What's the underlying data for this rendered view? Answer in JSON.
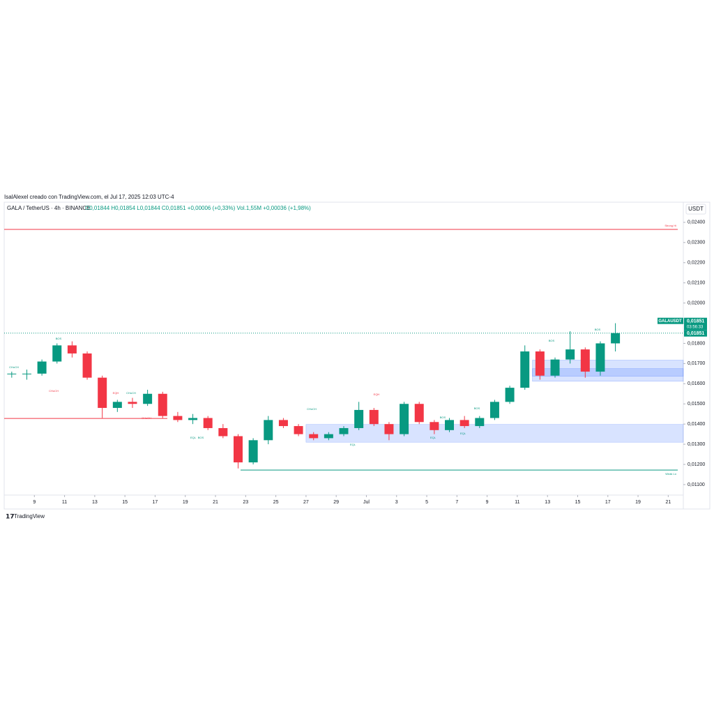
{
  "header": {
    "credit": "IsalAlexel creado con TradingView.com, el Jul 17, 2025 12:03 UTC-4",
    "symbol": "GALA / TetherUS · 4h · BINANCE",
    "ohlc": "O0,01844 H0,01854 L0,01844 C0,01851 +0,00006 (+0,33%) Vol.1,55M +0,00036 (+1,98%)",
    "currency": "USDT",
    "brand": "TradingView"
  },
  "chart_data": {
    "type": "candlestick",
    "x": [
      "2025-06-07",
      "2025-06-08",
      "2025-06-09",
      "2025-06-10",
      "2025-06-11",
      "2025-06-12",
      "2025-06-13",
      "2025-06-14",
      "2025-06-15",
      "2025-06-16",
      "2025-06-17",
      "2025-06-18",
      "2025-06-19",
      "2025-06-20",
      "2025-06-21",
      "2025-06-22",
      "2025-06-23",
      "2025-06-24",
      "2025-06-25",
      "2025-06-26",
      "2025-06-27",
      "2025-06-28",
      "2025-06-29",
      "2025-06-30",
      "2025-07-01",
      "2025-07-02",
      "2025-07-03",
      "2025-07-04",
      "2025-07-05",
      "2025-07-06",
      "2025-07-07",
      "2025-07-08",
      "2025-07-09",
      "2025-07-10",
      "2025-07-11",
      "2025-07-12",
      "2025-07-13",
      "2025-07-14",
      "2025-07-15",
      "2025-07-16",
      "2025-07-17"
    ],
    "open": [
      0.0165,
      0.0165,
      0.0165,
      0.0171,
      0.0179,
      0.0175,
      0.0163,
      0.0148,
      0.0151,
      0.015,
      0.0155,
      0.0144,
      0.0142,
      0.0143,
      0.0138,
      0.0134,
      0.0121,
      0.0132,
      0.0142,
      0.0139,
      0.0135,
      0.0133,
      0.0135,
      0.0138,
      0.0147,
      0.014,
      0.0135,
      0.015,
      0.0141,
      0.0137,
      0.0142,
      0.0139,
      0.0143,
      0.0151,
      0.0158,
      0.0176,
      0.0164,
      0.0172,
      0.0177,
      0.0166,
      0.018
    ],
    "high": [
      0.0166,
      0.0167,
      0.0172,
      0.018,
      0.0181,
      0.0176,
      0.0164,
      0.0152,
      0.0153,
      0.0157,
      0.0156,
      0.0146,
      0.0145,
      0.0144,
      0.014,
      0.0135,
      0.0133,
      0.0144,
      0.0143,
      0.014,
      0.0136,
      0.0136,
      0.0139,
      0.0151,
      0.0148,
      0.0141,
      0.0151,
      0.0151,
      0.0142,
      0.0143,
      0.0144,
      0.0144,
      0.0152,
      0.0159,
      0.0179,
      0.0177,
      0.0173,
      0.0186,
      0.0178,
      0.0181,
      0.019
    ],
    "low": [
      0.0163,
      0.0162,
      0.0164,
      0.017,
      0.0173,
      0.0162,
      0.0143,
      0.0146,
      0.0148,
      0.0149,
      0.0143,
      0.0141,
      0.014,
      0.0137,
      0.0133,
      0.0118,
      0.012,
      0.013,
      0.0138,
      0.0134,
      0.0132,
      0.0132,
      0.0134,
      0.0137,
      0.0139,
      0.0132,
      0.0134,
      0.014,
      0.0135,
      0.0136,
      0.0138,
      0.0138,
      0.0142,
      0.015,
      0.0157,
      0.0162,
      0.0163,
      0.017,
      0.0163,
      0.0164,
      0.0176
    ],
    "close": [
      0.0165,
      0.0165,
      0.0171,
      0.0179,
      0.0175,
      0.0163,
      0.0148,
      0.0151,
      0.015,
      0.0155,
      0.0144,
      0.0142,
      0.0143,
      0.0138,
      0.0134,
      0.0121,
      0.0132,
      0.0142,
      0.0139,
      0.0135,
      0.0133,
      0.0135,
      0.0138,
      0.0147,
      0.014,
      0.0135,
      0.015,
      0.0141,
      0.0137,
      0.0142,
      0.0139,
      0.0143,
      0.0151,
      0.0158,
      0.0176,
      0.0164,
      0.0172,
      0.0177,
      0.0166,
      0.018,
      0.01851
    ],
    "up_color": "#089981",
    "down_color": "#f23645",
    "xlim": [
      "2025-06-07",
      "2025-07-22"
    ],
    "xticks": [
      {
        "value": "2025-06-09",
        "label": "9"
      },
      {
        "value": "2025-06-11",
        "label": "11"
      },
      {
        "value": "2025-06-13",
        "label": "13"
      },
      {
        "value": "2025-06-15",
        "label": "15"
      },
      {
        "value": "2025-06-17",
        "label": "17"
      },
      {
        "value": "2025-06-19",
        "label": "19"
      },
      {
        "value": "2025-06-21",
        "label": "21"
      },
      {
        "value": "2025-06-23",
        "label": "23"
      },
      {
        "value": "2025-06-25",
        "label": "25"
      },
      {
        "value": "2025-06-27",
        "label": "27"
      },
      {
        "value": "2025-06-29",
        "label": "29"
      },
      {
        "value": "2025-07-01",
        "label": "Jul"
      },
      {
        "value": "2025-07-03",
        "label": "3"
      },
      {
        "value": "2025-07-05",
        "label": "5"
      },
      {
        "value": "2025-07-07",
        "label": "7"
      },
      {
        "value": "2025-07-09",
        "label": "9"
      },
      {
        "value": "2025-07-11",
        "label": "11"
      },
      {
        "value": "2025-07-13",
        "label": "13"
      },
      {
        "value": "2025-07-15",
        "label": "15"
      },
      {
        "value": "2025-07-17",
        "label": "17"
      },
      {
        "value": "2025-07-19",
        "label": "19"
      },
      {
        "value": "2025-07-21",
        "label": "21"
      }
    ],
    "ylim": [
      0.01048,
      0.02448
    ],
    "yticks": [
      {
        "value": 0.011,
        "label": "0,01100"
      },
      {
        "value": 0.012,
        "label": "0,01200"
      },
      {
        "value": 0.013,
        "label": "0,01300"
      },
      {
        "value": 0.014,
        "label": "0,01400"
      },
      {
        "value": 0.015,
        "label": "0,01500"
      },
      {
        "value": 0.016,
        "label": "0,01600"
      },
      {
        "value": 0.017,
        "label": "0,01700"
      },
      {
        "value": 0.018,
        "label": "0,01800"
      },
      {
        "value": 0.019,
        "label": "0,01900"
      },
      {
        "value": 0.02,
        "label": "0,02000"
      },
      {
        "value": 0.021,
        "label": "0,02100"
      },
      {
        "value": 0.022,
        "label": "0,02200"
      },
      {
        "value": 0.023,
        "label": "0,02300"
      },
      {
        "value": 0.024,
        "label": "0,02400"
      }
    ],
    "last_price": {
      "symbol": "GALAUSDT",
      "value": 0.01851,
      "label": "0,01851",
      "countdown": "03:56:33"
    },
    "levels": [
      {
        "label": "Strong Hi",
        "value": 0.02365,
        "color": "#f23645"
      },
      {
        "label": "Weak Lo",
        "value": 0.01172,
        "color": "#089981"
      }
    ],
    "level_line": {
      "value": 0.01428,
      "color": "#f23645"
    },
    "zones": [
      {
        "from": "2025-07-12",
        "range": [
          0.01612,
          0.01717
        ]
      },
      {
        "from": "2025-07-12",
        "range": [
          0.01637,
          0.01675
        ]
      },
      {
        "from": "2025-06-27",
        "range": [
          0.0131,
          0.01398
        ]
      }
    ],
    "annotations": [
      "CHoCH",
      "BOS",
      "CHoCH",
      "EQH",
      "CHoCH",
      "CHoCH",
      "EQL",
      "BOS",
      "CHoCH",
      "EQH",
      "EQL",
      "BOS",
      "EQL",
      "EQL",
      "BOS",
      "BOS",
      "BOS"
    ]
  }
}
